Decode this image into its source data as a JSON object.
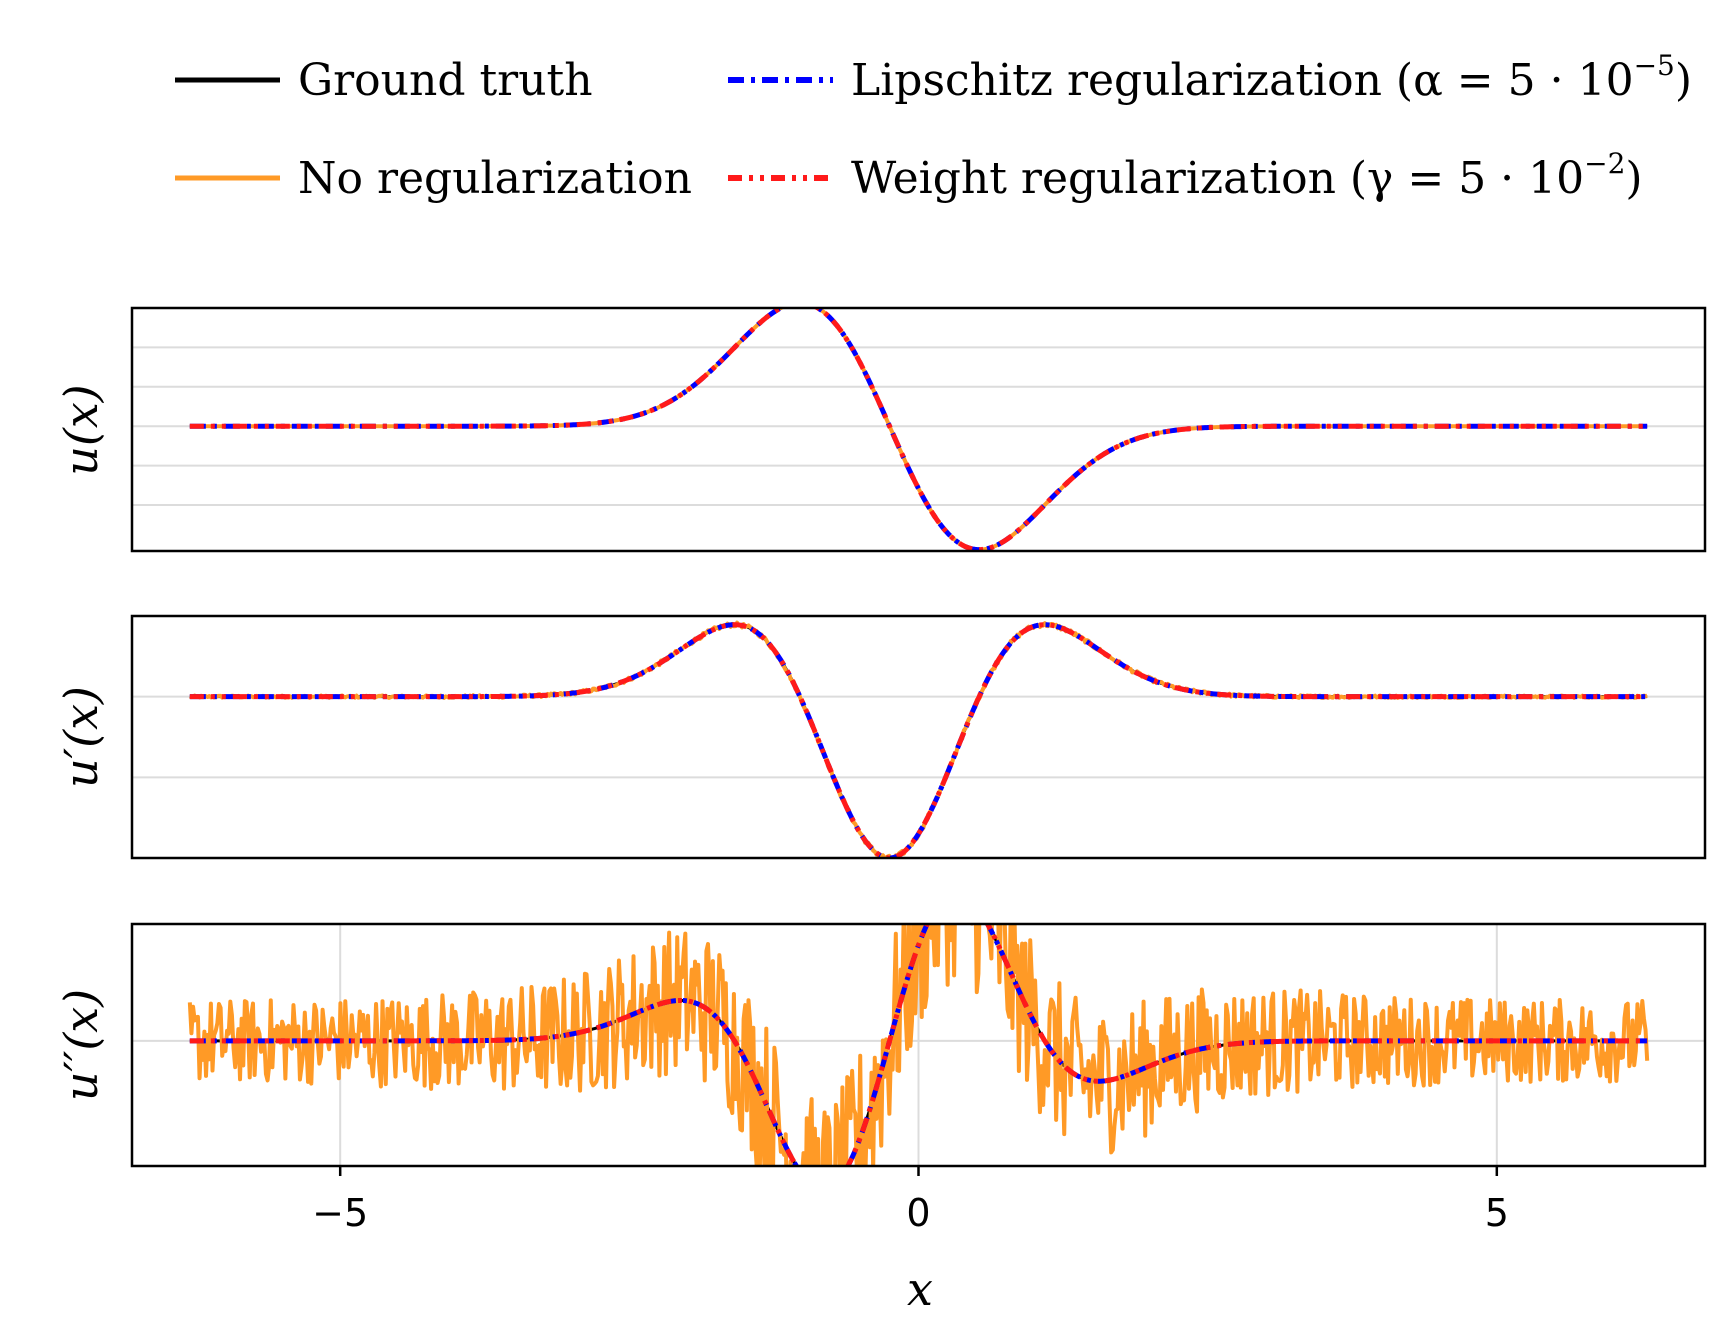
{
  "legend": {
    "items": [
      {
        "label": "Ground truth",
        "math": "",
        "color": "#000000",
        "style": "solid"
      },
      {
        "label": "Lipschitz regularization (α = 5 · 10",
        "math": "−5",
        "close": ")",
        "color": "#0000ff",
        "style": "dashdot"
      },
      {
        "label": "No regularization",
        "math": "",
        "color": "#ff9a26",
        "style": "solid"
      },
      {
        "label": "Weight regularization (γ = 5 · 10",
        "math": "−2",
        "close": ")",
        "color": "#ff1a1a",
        "style": "dashdotdot"
      }
    ]
  },
  "chart_data": [
    {
      "type": "line",
      "panel": "u",
      "ylabel": "u(x)",
      "xlim": [
        -6.8,
        6.8
      ],
      "ylim": [
        -0.95,
        0.9
      ],
      "grid_y": [
        -0.6,
        -0.3,
        0.0,
        0.3,
        0.6
      ],
      "series": [
        {
          "name": "Ground truth",
          "color": "#000000",
          "function": "u"
        },
        {
          "name": "No regularization",
          "color": "#ff9a26",
          "function": "u"
        },
        {
          "name": "Lipschitz regularization (α = 5 · 10^−5)",
          "color": "#0000ff",
          "function": "u"
        },
        {
          "name": "Weight regularization (γ = 5 · 10^−2)",
          "color": "#ff1a1a",
          "function": "u"
        }
      ]
    },
    {
      "type": "line",
      "panel": "du",
      "ylabel": "u′(x)",
      "xlim": [
        -6.8,
        6.8
      ],
      "ylim": [
        -2.0,
        1.0
      ],
      "grid_y": [
        -1.0,
        0.0,
        1.0
      ],
      "series": [
        {
          "name": "Ground truth",
          "color": "#000000",
          "function": "du"
        },
        {
          "name": "No regularization",
          "color": "#ff9a26",
          "function": "du",
          "noise": 0.03
        },
        {
          "name": "Lipschitz regularization (α = 5 · 10^−5)",
          "color": "#0000ff",
          "function": "du"
        },
        {
          "name": "Weight regularization (γ = 5 · 10^−2)",
          "color": "#ff1a1a",
          "function": "du"
        }
      ]
    },
    {
      "type": "line",
      "panel": "ddu",
      "ylabel": "u′′(x)",
      "xlabel": "x",
      "xlim": [
        -6.8,
        6.8
      ],
      "ylim": [
        -3.0,
        2.8
      ],
      "x_ticks": [
        -5,
        0,
        5
      ],
      "x_tick_labels": [
        "−5",
        "0",
        "5"
      ],
      "grid_y": [
        0.0
      ],
      "series": [
        {
          "name": "Ground truth",
          "color": "#000000",
          "function": "ddu"
        },
        {
          "name": "No regularization",
          "color": "#ff9a26",
          "function": "ddu",
          "noise": 2.2
        },
        {
          "name": "Lipschitz regularization (α = 5 · 10^−5)",
          "color": "#0000ff",
          "function": "ddu"
        },
        {
          "name": "Weight regularization (γ = 5 · 10^−2)",
          "color": "#ff1a1a",
          "function": "ddu"
        }
      ]
    }
  ]
}
